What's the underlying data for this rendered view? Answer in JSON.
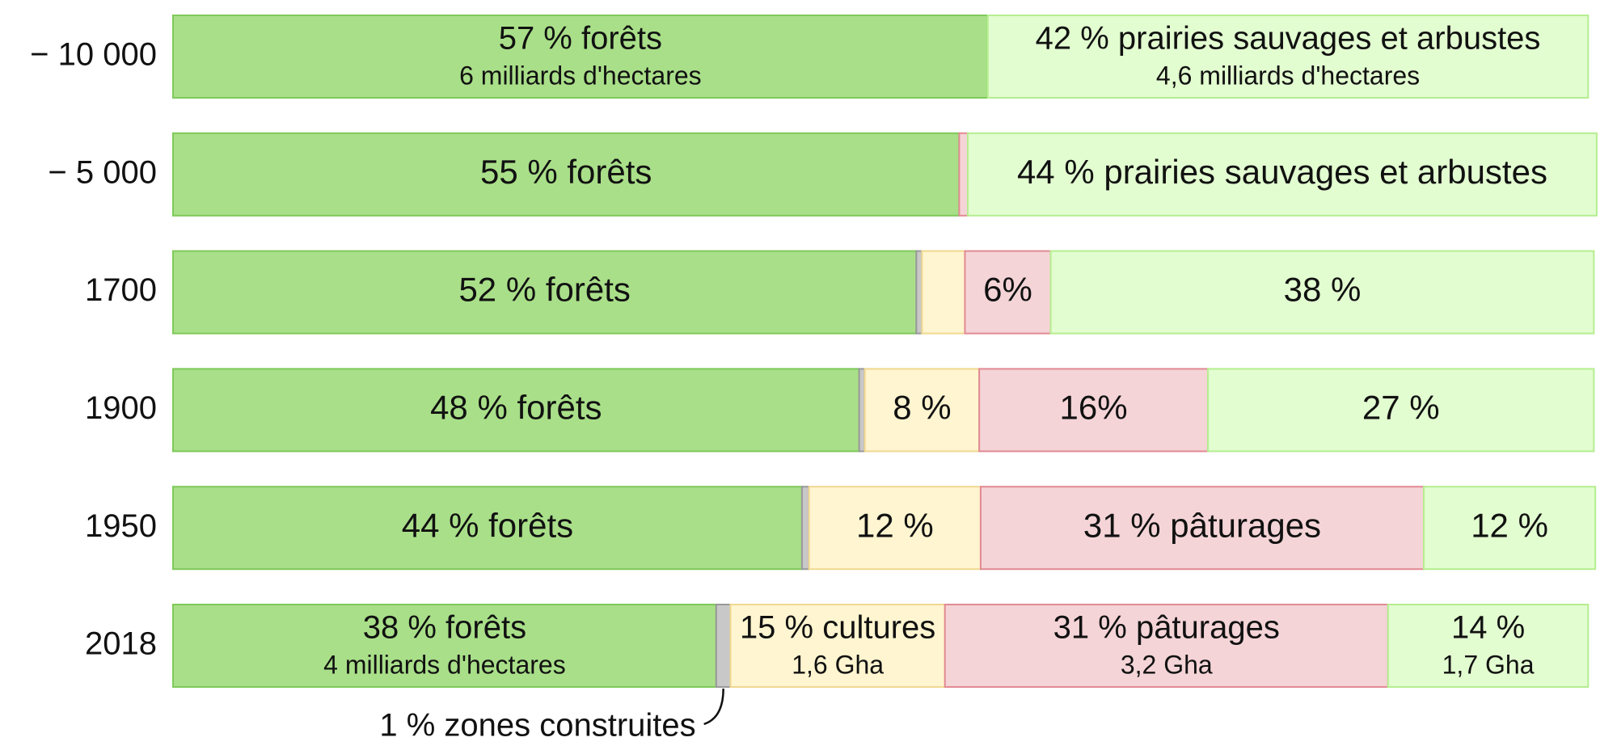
{
  "chart_data": {
    "type": "stacked-barh",
    "categories": [
      "− 10 000",
      "− 5 000",
      "1700",
      "1900",
      "1950",
      "2018"
    ],
    "xlim": [
      0,
      100
    ],
    "series": [
      {
        "color": "#a9df89",
        "stroke": "#7fc95a",
        "values": [
          57,
          55,
          52,
          48,
          44,
          38
        ],
        "value_labels": [
          "57 % forêts",
          "55 % forêts",
          "52 % forêts",
          "48 % forêts",
          "44 % forêts",
          "38 % forêts"
        ],
        "value_notes": [
          "6 milliards d'hectares",
          null,
          null,
          null,
          null,
          "4 milliards d'hectares"
        ]
      },
      {
        "color": "#c8c8c8",
        "stroke": "#999999",
        "values": [
          0,
          0,
          0.4,
          0.4,
          0.5,
          1
        ],
        "value_labels": [
          null,
          null,
          null,
          null,
          null,
          "1 % zones construites"
        ]
      },
      {
        "color": "#fff5d0",
        "stroke": "#f0d890",
        "values": [
          0,
          0,
          3,
          8,
          12,
          15
        ],
        "value_labels": [
          null,
          null,
          null,
          "8 %",
          "12 %",
          "15 % cultures"
        ],
        "value_notes": [
          null,
          null,
          null,
          null,
          null,
          "1,6 Gha"
        ]
      },
      {
        "color": "#f4d4d7",
        "stroke": "#e28a93",
        "values": [
          0,
          0.6,
          6,
          16,
          31,
          31
        ],
        "value_labels": [
          null,
          null,
          "6%",
          "16%",
          "31 % pâturages",
          "31 % pâturages"
        ],
        "value_notes": [
          null,
          null,
          null,
          null,
          null,
          "3,2 Gha"
        ]
      },
      {
        "color": "#e2fdd0",
        "stroke": "#b5ee90",
        "values": [
          42,
          44,
          38,
          27,
          12,
          14
        ],
        "value_labels": [
          "42 % prairies sauvages et arbustes",
          "44 % prairies sauvages et arbustes",
          "38 %",
          "27 %",
          "12 %",
          "14 %"
        ],
        "value_notes": [
          "4,6 milliards d'hectares",
          null,
          null,
          null,
          null,
          "1,7 Gha"
        ]
      }
    ]
  }
}
